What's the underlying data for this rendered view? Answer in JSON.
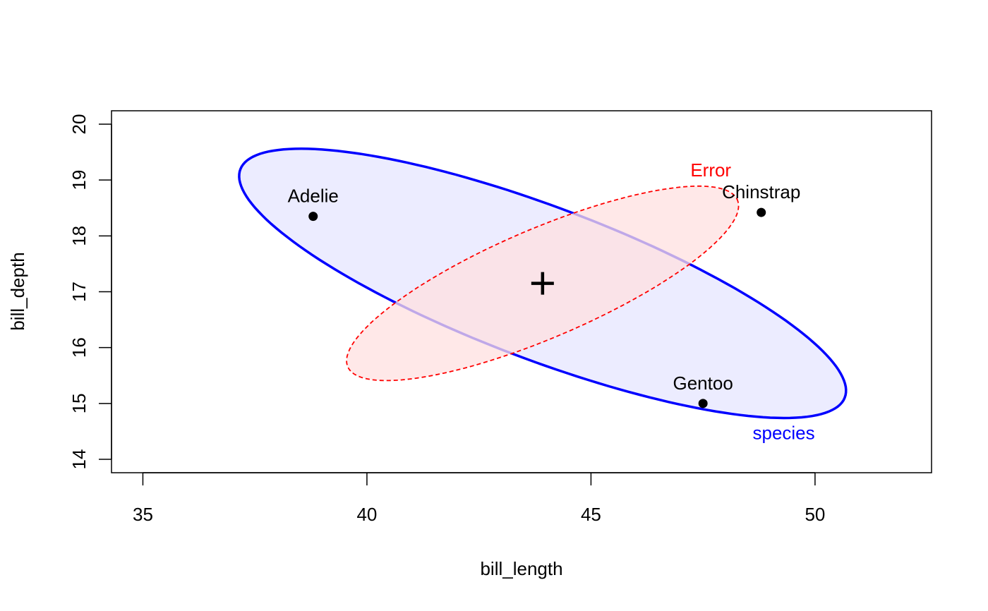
{
  "chart_data": {
    "type": "scatter",
    "xlabel": "bill_length",
    "ylabel": "bill_depth",
    "xlim": [
      34.3,
      52.6
    ],
    "ylim": [
      13.76,
      20.24
    ],
    "x_ticks": [
      35,
      40,
      45,
      50
    ],
    "y_ticks": [
      14,
      15,
      16,
      17,
      18,
      19,
      20
    ],
    "grid": false,
    "centroid": {
      "x": 43.92,
      "y": 17.15
    },
    "points": [
      {
        "label": "Adelie",
        "x": 38.8,
        "y": 18.35
      },
      {
        "label": "Chinstrap",
        "x": 48.8,
        "y": 18.42
      },
      {
        "label": "Gentoo",
        "x": 47.5,
        "y": 15.0
      }
    ],
    "ellipses": [
      {
        "label": "species",
        "color": "#0000ff",
        "fill": "#e5e5ff",
        "line": "solid",
        "center": {
          "x": 43.92,
          "y": 17.15
        },
        "semi_major": 7.05,
        "semi_minor": 1.4,
        "angle_deg": -16.5
      },
      {
        "label": "Error",
        "color": "#ff0000",
        "fill": "#ffe0e0",
        "line": "dashed",
        "center": {
          "x": 43.92,
          "y": 17.15
        },
        "semi_major": 4.6,
        "semi_minor": 1.0,
        "angle_deg": 18.5
      }
    ]
  }
}
